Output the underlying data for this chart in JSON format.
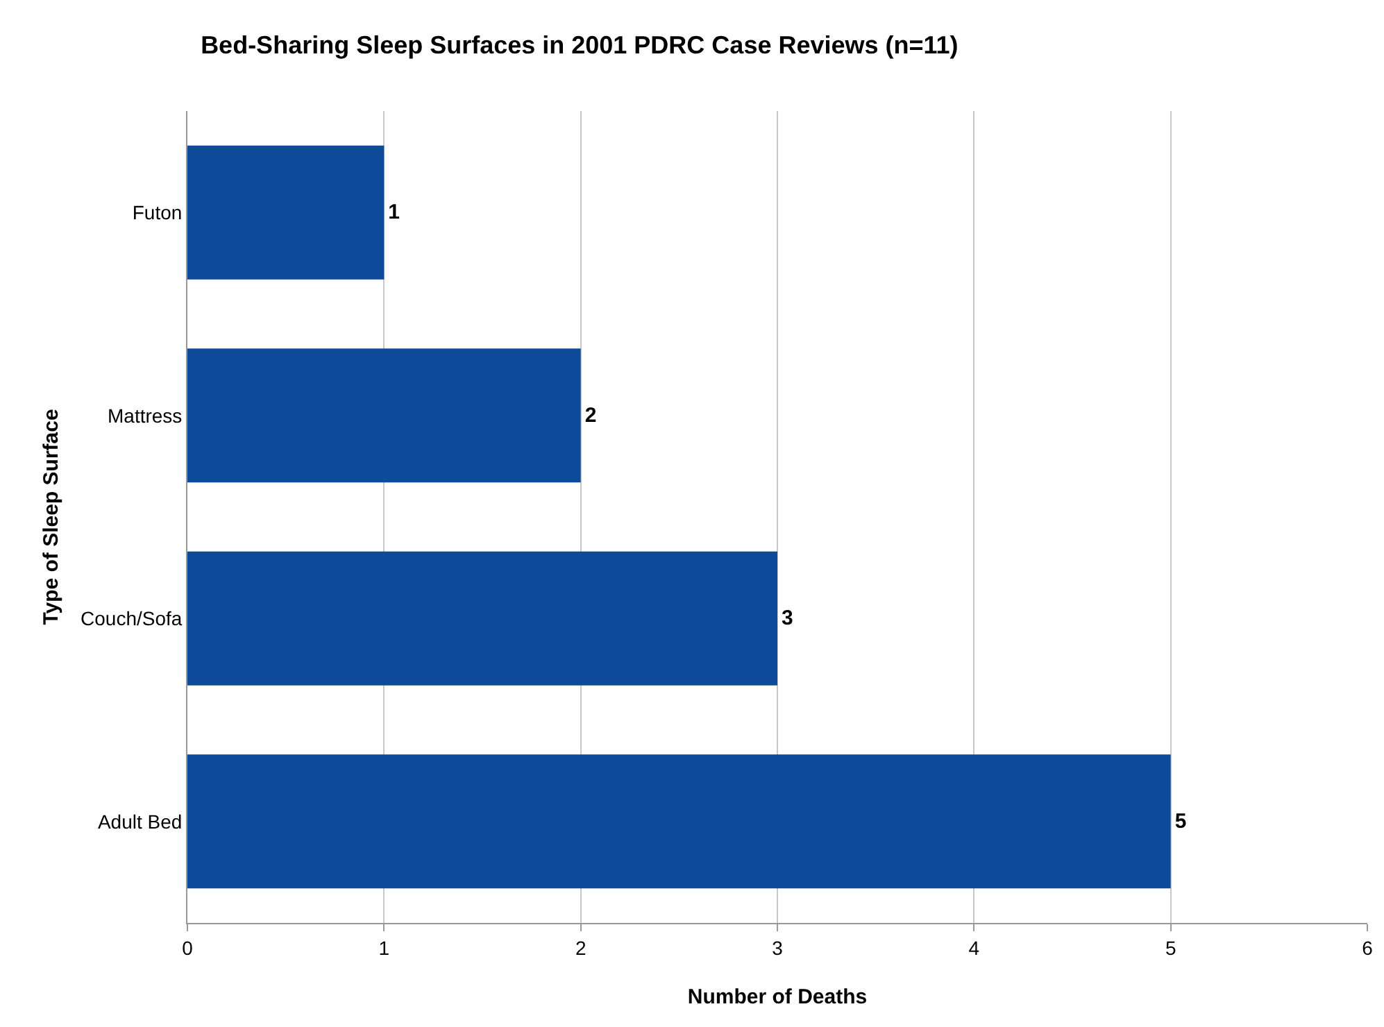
{
  "chart_data": {
    "type": "bar",
    "orientation": "horizontal",
    "title": "Bed-Sharing Sleep Surfaces in 2001 PDRC Case Reviews (n=11)",
    "xlabel": "Number of Deaths",
    "ylabel": "Type of Sleep Surface",
    "categories": [
      "Futon",
      "Mattress",
      "Couch/Sofa",
      "Adult Bed"
    ],
    "values": [
      1,
      2,
      3,
      5
    ],
    "color": "#0d4a9a",
    "data_labels": true,
    "xlim": [
      0,
      6
    ],
    "xticks": [
      0,
      1,
      2,
      3,
      4,
      5,
      6
    ],
    "grid": "x",
    "legend": false
  }
}
